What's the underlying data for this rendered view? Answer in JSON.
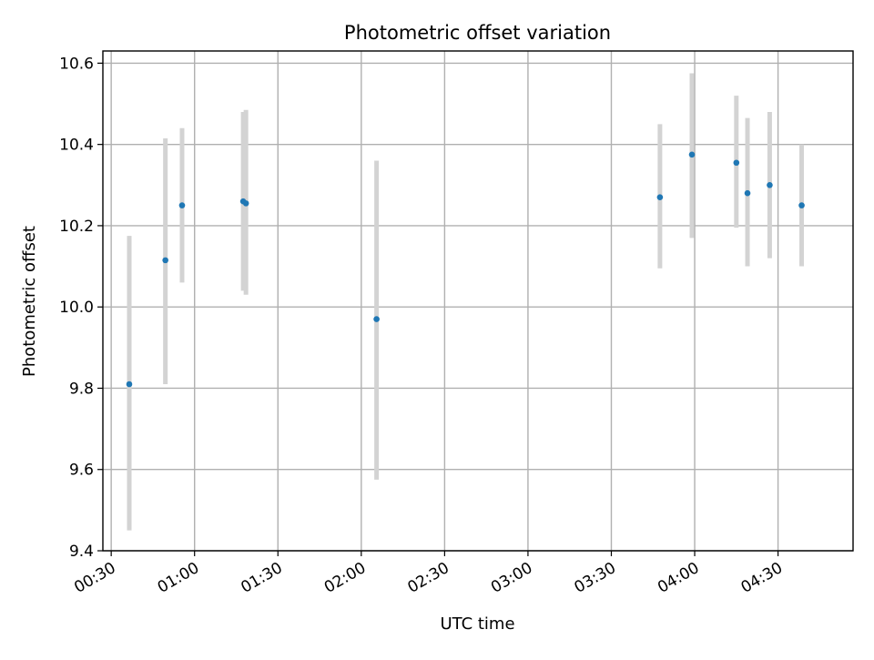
{
  "chart_data": {
    "type": "scatter",
    "title": "Photometric offset variation",
    "xlabel": "UTC time",
    "ylabel": "Photometric offset",
    "x_axis_kind": "time",
    "xlim": [
      "00:27",
      "04:57"
    ],
    "ylim": [
      9.4,
      10.63
    ],
    "x_ticks": [
      "00:30",
      "01:00",
      "01:30",
      "02:00",
      "02:30",
      "03:00",
      "03:30",
      "04:00",
      "04:30"
    ],
    "y_ticks": [
      "9.4",
      "9.6",
      "9.8",
      "10.0",
      "10.2",
      "10.4",
      "10.6"
    ],
    "grid": true,
    "marker_color": "#1f77b4",
    "errorbar_color": "#d3d3d3",
    "points": [
      {
        "x": "00:36:30",
        "y": 9.81,
        "low": 9.45,
        "high": 10.175
      },
      {
        "x": "00:49:30",
        "y": 10.115,
        "low": 9.81,
        "high": 10.415
      },
      {
        "x": "00:55:30",
        "y": 10.25,
        "low": 10.06,
        "high": 10.44
      },
      {
        "x": "01:17:30",
        "y": 10.26,
        "low": 10.04,
        "high": 10.48
      },
      {
        "x": "01:18:30",
        "y": 10.255,
        "low": 10.03,
        "high": 10.485
      },
      {
        "x": "02:05:30",
        "y": 9.97,
        "low": 9.575,
        "high": 10.36
      },
      {
        "x": "03:47:30",
        "y": 10.27,
        "low": 10.095,
        "high": 10.45
      },
      {
        "x": "03:59:00",
        "y": 10.375,
        "low": 10.17,
        "high": 10.575
      },
      {
        "x": "04:15:00",
        "y": 10.355,
        "low": 10.195,
        "high": 10.52
      },
      {
        "x": "04:19:00",
        "y": 10.28,
        "low": 10.1,
        "high": 10.465
      },
      {
        "x": "04:27:00",
        "y": 10.3,
        "low": 10.12,
        "high": 10.48
      },
      {
        "x": "04:38:30",
        "y": 10.25,
        "low": 10.1,
        "high": 10.4
      }
    ]
  }
}
